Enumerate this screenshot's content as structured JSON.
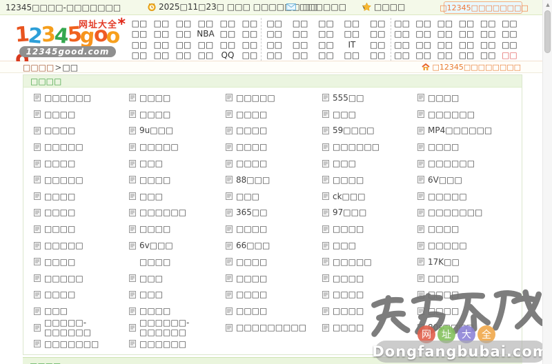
{
  "topbar": {
    "site_title": "12345□□□□-□□□□□□□",
    "date_text": "2025□11□23□ □□□ □□□□□□ □□",
    "mail_label": "□□□□□□",
    "caret_glyph": "▼",
    "favorites_label": "□□□□",
    "desktop_button_label": "□12345□□□□□□□□"
  },
  "logo": {
    "brand_letters": [
      {
        "ch": "1",
        "color": "#e8541f"
      },
      {
        "ch": "2",
        "color": "#2d9fd8"
      },
      {
        "ch": "3",
        "color": "#f59e1b"
      },
      {
        "ch": "4",
        "color": "#35a84f"
      },
      {
        "ch": "5",
        "color": "#f0611e"
      },
      {
        "ch": "g",
        "color": "#f7941d"
      },
      {
        "ch": "o",
        "color": "#ef5b24"
      },
      {
        "ch": "o",
        "color": "#f7a01d"
      },
      {
        "ch": "d",
        "color": "#d93a1e"
      }
    ],
    "tagline": "网址大全",
    "spark": "*",
    "domain": "12345good.com"
  },
  "nav": {
    "sections": [
      {
        "columns": [
          [
            "□□",
            "□□",
            "□□",
            "□□"
          ],
          [
            "□□",
            "□□",
            "□□",
            "□□"
          ],
          [
            "□□",
            "□□",
            "□□",
            "□□"
          ],
          [
            "□□",
            "NBA",
            "□□",
            "□□"
          ],
          [
            "□□",
            "□□",
            "□□",
            "QQ"
          ],
          [
            "□□",
            "□□",
            "□□",
            "□□"
          ]
        ]
      },
      {
        "columns": [
          [
            "□□",
            "□□",
            "□□",
            "□□"
          ],
          [
            "□□",
            "□□",
            "□□",
            "□□"
          ],
          [
            "□□",
            "□□",
            "□□",
            "□□"
          ],
          [
            "□□",
            "□□",
            "IT",
            "□□"
          ],
          [
            "□□",
            "□□",
            "□□",
            "□□"
          ]
        ]
      },
      {
        "columns": [
          [
            "□□",
            "□□",
            "□□",
            "□□"
          ],
          [
            "□□",
            "□□",
            "□□",
            "□□"
          ],
          [
            "□□",
            "□□",
            "□□",
            "□□"
          ],
          [
            "□□",
            "□□",
            "□□",
            "□□"
          ],
          [
            "□□",
            "□□",
            "□□",
            "□□"
          ],
          [
            "□□",
            "□□",
            "□□",
            {
              "text": "□□",
              "red": true
            }
          ]
        ]
      }
    ]
  },
  "breadcrumb": {
    "root": "□□□□",
    "separator": ">",
    "current": "□□",
    "desktop_link": "□12345□□□□□□□□"
  },
  "content": {
    "section_title": "□□□□",
    "columns": [
      {
        "items": [
          "□□□□□□",
          "□□□□",
          "□□□□",
          "□□□□□",
          "□□□□",
          "□□□□□",
          "□□□□",
          "□□□□",
          "□□□□",
          "□□□□□",
          "□□□□",
          "□□□□□",
          "□□□□",
          "□□□",
          "□□□□□-□□□□□□",
          "□□□□□□□"
        ]
      },
      {
        "items": [
          "□□□□",
          "□□□□",
          "9u□□□",
          "□□□□□",
          "□□□",
          "□□□□",
          "□□□",
          "□□□□□□",
          "□□□□",
          "6v□□□",
          {
            "text": "□□□□",
            "icon": false
          },
          "□□□",
          "□□□",
          "□□□□",
          "□□□□□□-□□□□□□",
          "□□□□□□"
        ]
      },
      {
        "items": [
          "□□□□□",
          "□□□□",
          "□□□□",
          "□□□□",
          "□□□□",
          "88□□□",
          "□□□",
          "365□□",
          "□□□□",
          "66□□□",
          "□□□□",
          "□□□□",
          "□□□□",
          "□□□□",
          "□□□□□□□□□"
        ]
      },
      {
        "items": [
          "555□□",
          "□□□",
          "59□□□□",
          "□□□□□□",
          "□□□",
          "□□□□",
          "ck□□□",
          "97□□□",
          "□□□□",
          "□□□",
          "□□□□□",
          "□□□□",
          "□□□□",
          "□□□□",
          "□□□□"
        ]
      },
      {
        "items": [
          "□□□□",
          "□□□□□□",
          "MP4□□□□□□",
          "□□□□",
          "□□□□□□",
          "6V□□□",
          "□□□□□",
          "□□□□□□□",
          "□□□□",
          "□□□□□",
          "17K□□",
          "□□□□",
          "□□□□",
          "□□□□",
          "80s□□□□"
        ]
      }
    ]
  },
  "footer": {
    "section_title": "□□□□"
  },
  "scrollbar": {
    "up_glyph": "▲"
  },
  "watermark": {
    "calligraphy": "东方不败",
    "badges": [
      {
        "char": "网",
        "color": "#e2614d"
      },
      {
        "char": "址",
        "color": "#84c15e"
      },
      {
        "char": "大",
        "color": "#8e84d8"
      },
      {
        "char": "全",
        "color": "#f0a84b"
      }
    ],
    "domain": "Dongfangbubai.com"
  }
}
